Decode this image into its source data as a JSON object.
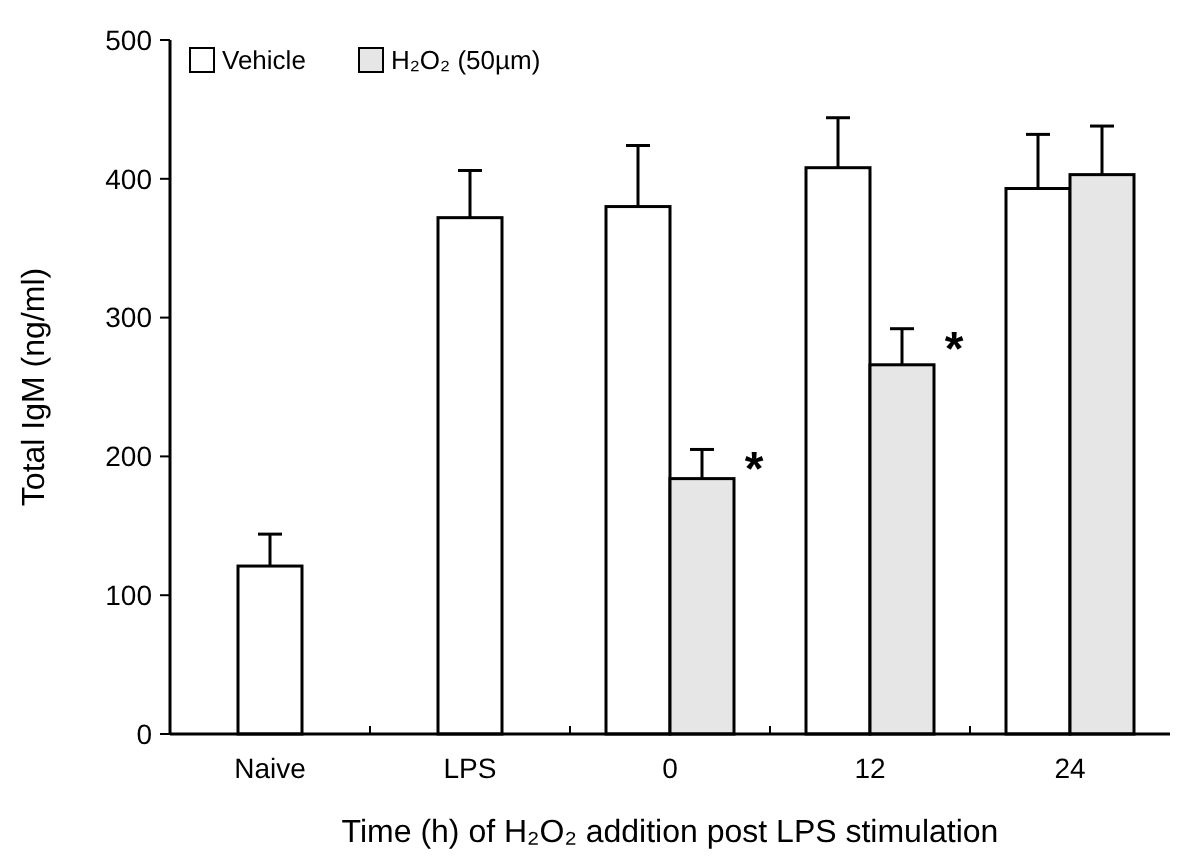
{
  "chart_data": {
    "type": "bar",
    "xlabel": "Time (h) of H₂O₂ addition post LPS stimulation",
    "ylabel": "Total IgM (ng/ml)",
    "categories": [
      "Naive",
      "LPS",
      "0",
      "12",
      "24"
    ],
    "series": [
      {
        "name": "Vehicle",
        "color": "#ffffff",
        "values": [
          121,
          372,
          380,
          408,
          393
        ],
        "errors": [
          [
            121,
            144
          ],
          [
            372,
            406
          ],
          [
            380,
            424
          ],
          [
            408,
            444
          ],
          [
            393,
            432
          ]
        ]
      },
      {
        "name": "H₂O₂ (50µm)",
        "color": "#e6e6e6",
        "values": [
          null,
          null,
          184,
          266,
          403
        ],
        "errors": [
          null,
          null,
          [
            184,
            205
          ],
          [
            266,
            292
          ],
          [
            403,
            438
          ]
        ]
      }
    ],
    "ylim": [
      0,
      500
    ],
    "yticks": [
      0,
      100,
      200,
      300,
      400,
      500
    ],
    "grid": false,
    "legend": "top left",
    "annotations": [
      {
        "text": "*",
        "x": "0",
        "y": 205
      },
      {
        "text": "*",
        "x": "12",
        "y": 292
      }
    ]
  }
}
